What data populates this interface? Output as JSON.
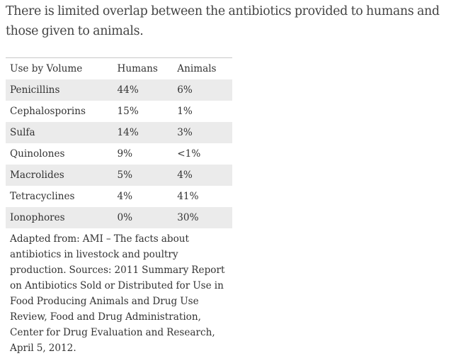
{
  "intro": "There is limited overlap between the antibiotics provided to humans and those given to animals.",
  "table": {
    "headers": {
      "drug": "Use by Volume",
      "humans": "Humans",
      "animals": "Animals"
    },
    "rows": [
      {
        "drug": "Penicillins",
        "humans": "44%",
        "animals": "6%"
      },
      {
        "drug": "Cephalosporins",
        "humans": "15%",
        "animals": "1%"
      },
      {
        "drug": "Sulfa",
        "humans": "14%",
        "animals": "3%"
      },
      {
        "drug": "Quinolones",
        "humans": "9%",
        "animals": "<1%"
      },
      {
        "drug": "Macrolides",
        "humans": "5%",
        "animals": "4%"
      },
      {
        "drug": "Tetracyclines",
        "humans": "4%",
        "animals": "41%"
      },
      {
        "drug": "Ionophores",
        "humans": "0%",
        "animals": "30%"
      }
    ]
  },
  "caption": "Adapted from: AMI – The facts about antibiotics in livestock and poultry production. Sources: 2011 Summary Report on Antibiotics Sold or Distributed for Use in Food Producing Animals and Drug Use Review, Food and Drug Administration, Center for Drug Evaluation and Research, April 5, 2012.",
  "colors": {
    "stripe": "#ebebeb",
    "rule": "#c8c8c8",
    "text": "#333333"
  }
}
